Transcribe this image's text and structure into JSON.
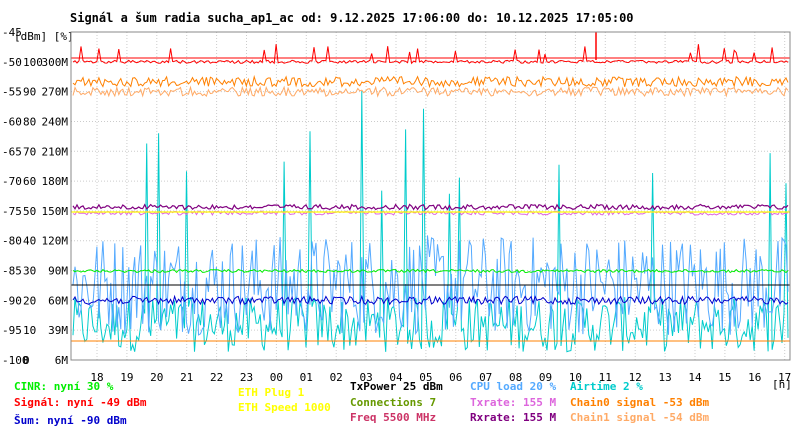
{
  "chart_data": {
    "type": "line",
    "title": "Signál a šum radia sucha_ap1_ac od: 9.12.2025 17:06:00 do: 10.12.2025 17:05:00",
    "y_unit_label": "[dBm] [%]",
    "x_unit_label": "[h]",
    "x_ticks": [
      "18",
      "19",
      "20",
      "21",
      "22",
      "23",
      "00",
      "01",
      "02",
      "03",
      "04",
      "05",
      "06",
      "07",
      "08",
      "09",
      "10",
      "11",
      "12",
      "13",
      "14",
      "15",
      "16",
      "17"
    ],
    "y_ticks_dbm": [
      "-45",
      "-50",
      "-55",
      "-60",
      "-65",
      "-70",
      "-75",
      "-80",
      "-85",
      "-90",
      "-95",
      "-100"
    ],
    "y_ticks_pct": [
      "",
      "100",
      "90",
      "80",
      "70",
      "60",
      "50",
      "40",
      "30",
      "20",
      "10",
      "0"
    ],
    "y_ticks_rate": [
      "",
      "300M",
      "270M",
      "240M",
      "210M",
      "180M",
      "150M",
      "120M",
      "90M",
      "60M",
      "39M",
      "6M"
    ],
    "y_dbm_range": [
      -100,
      -45
    ],
    "grid": true,
    "series": [
      {
        "name": "Signál",
        "color": "#ff0000",
        "typical_dbm": -50
      },
      {
        "name": "Chain0 signal",
        "color": "#ff8000",
        "typical_dbm": -53
      },
      {
        "name": "Chain1 signal",
        "color": "#ffaa66",
        "typical_dbm": -54
      },
      {
        "name": "Šum",
        "color": "#0000cc",
        "typical_dbm": -90
      },
      {
        "name": "CINR",
        "color": "#00ee00",
        "typical_pct": 30
      },
      {
        "name": "Txrate",
        "color": "#dd66dd",
        "typical_mbps": 155
      },
      {
        "name": "Rxrate",
        "color": "#800080",
        "typical_mbps": 155
      },
      {
        "name": "CPU load",
        "color": "#55aaff",
        "typical_pct": 20
      },
      {
        "name": "Airtime",
        "color": "#00cccc",
        "typical_pct": 2
      },
      {
        "name": "ETH Speed",
        "color": "#ffff00",
        "typical_mbps": 1000
      }
    ]
  },
  "legend": {
    "col1": [
      {
        "text": "CINR: nyní 30 %",
        "color": "#00ee00"
      },
      {
        "text": "Signál: nyní -49 dBm",
        "color": "#ff0000"
      },
      {
        "text": "Šum: nyní -90 dBm",
        "color": "#0000cc"
      }
    ],
    "col2": [
      {
        "text": "ETH Plug 1",
        "color": "#ffff00"
      },
      {
        "text": "ETH Speed 1000",
        "color": "#ffff00"
      }
    ],
    "col3": [
      {
        "text": "TxPower 25 dBm",
        "color": "#000000"
      },
      {
        "text": "Connections 7",
        "color": "#669900"
      },
      {
        "text": "Freq 5500 MHz",
        "color": "#cc3366"
      }
    ],
    "col4": [
      {
        "text": "CPU load 20 %",
        "color": "#55aaff"
      },
      {
        "text": "Txrate: 155 M",
        "color": "#dd66dd"
      },
      {
        "text": "Rxrate: 155 M",
        "color": "#800080"
      }
    ],
    "col5": [
      {
        "text": "Airtime 2 %",
        "color": "#00cccc"
      },
      {
        "text": "Chain0 signal -53 dBm",
        "color": "#ff8000"
      },
      {
        "text": "Chain1 signal -54 dBm",
        "color": "#ffaa66"
      }
    ]
  }
}
